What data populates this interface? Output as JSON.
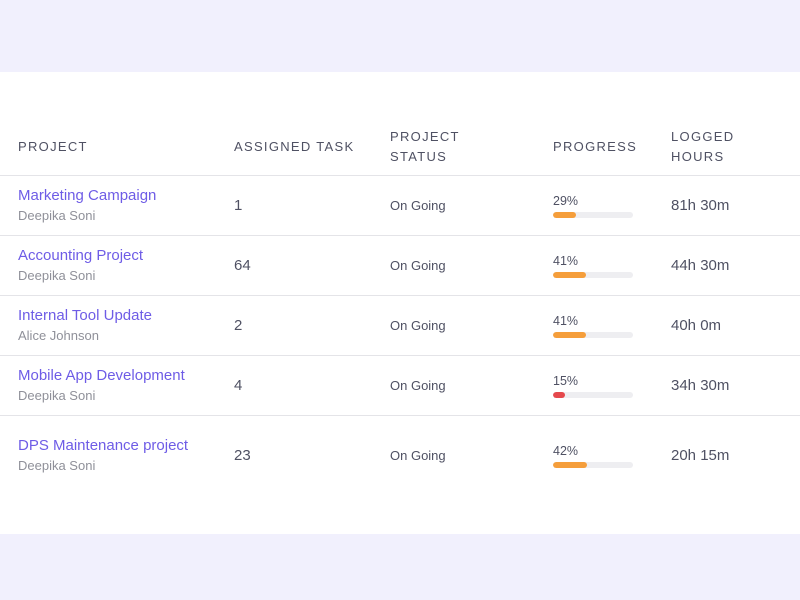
{
  "header": {
    "project": "PROJECT",
    "assigned_task": "ASSIGNED TASK",
    "project_status": "PROJECT STATUS",
    "progress": "PROGRESS",
    "logged_hours": "LOGGED HOURS"
  },
  "colors": {
    "accent": "#6e5ce6",
    "progress_orange": "#f59e3b",
    "progress_red": "#e5494d",
    "track": "#eeeef1"
  },
  "rows": [
    {
      "title": "Marketing Campaign",
      "owner": "Deepika Soni",
      "tasks": "1",
      "status": "On Going",
      "progress_label": "29%",
      "progress": 0.29,
      "bar_color": "#f59e3b",
      "hours": "81h 30m"
    },
    {
      "title": "Accounting Project",
      "owner": "Deepika Soni",
      "tasks": "64",
      "status": "On Going",
      "progress_label": "41%",
      "progress": 0.41,
      "bar_color": "#f59e3b",
      "hours": "44h 30m"
    },
    {
      "title": "Internal Tool Update",
      "owner": "Alice Johnson",
      "tasks": "2",
      "status": "On Going",
      "progress_label": "41%",
      "progress": 0.41,
      "bar_color": "#f59e3b",
      "hours": "40h 0m"
    },
    {
      "title": "Mobile App Development",
      "owner": "Deepika Soni",
      "tasks": "4",
      "status": "On Going",
      "progress_label": "15%",
      "progress": 0.15,
      "bar_color": "#e5494d",
      "hours": "34h 30m"
    },
    {
      "title": "DPS Maintenance project",
      "owner": "Deepika Soni",
      "tasks": "23",
      "status": "On Going",
      "progress_label": "42%",
      "progress": 0.42,
      "bar_color": "#f59e3b",
      "hours": "20h 15m"
    }
  ]
}
